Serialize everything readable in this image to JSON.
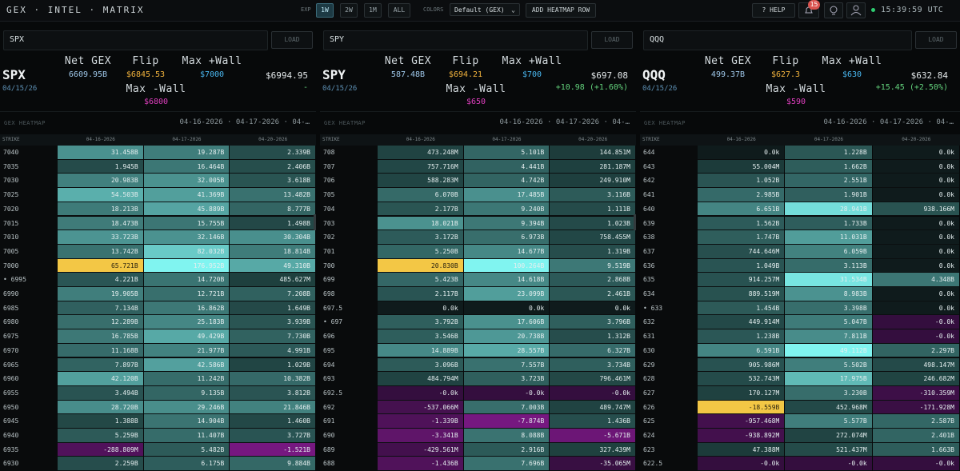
{
  "top_bar": {
    "title": "GEX · INTEL · MATRIX",
    "exp_label": "EXP",
    "exp_options": [
      "1W",
      "2W",
      "1M",
      "ALL"
    ],
    "exp_active": "1W",
    "colors_label": "COLORS",
    "colors_select": "Default (GEX)",
    "add_button": "ADD HEATMAP ROW",
    "help": "? HELP",
    "badge": "15",
    "clock": "15:39:59 UTC"
  },
  "panels": [
    {
      "input": "SPX",
      "load": "LOAD",
      "ticker": "SPX",
      "date": "04/15/26",
      "stats": [
        {
          "label": "Net GEX",
          "value": "6609.95B"
        },
        {
          "label": "Flip",
          "value": "$6845.53"
        },
        {
          "label": "Max +Wall",
          "value": "$7000"
        }
      ],
      "price": "$6994.95",
      "change": "-",
      "min_wall_label": "Max -Wall",
      "min_wall": "$6800",
      "heatmap_label": "GEX HEATMAP",
      "heatmap_dates": "04-16-2026 · 04-17-2026 · 04-…",
      "columns": [
        "STRIKE",
        "04-16-2026",
        "04-17-2026",
        "04-20-2026"
      ],
      "rows": [
        [
          "7040",
          "31.458B",
          "19.287B",
          "2.339B"
        ],
        [
          "7035",
          "1.945B",
          "16.464B",
          "2.406B"
        ],
        [
          "7030",
          "20.983B",
          "32.005B",
          "3.618B"
        ],
        [
          "7025",
          "54.503B",
          "41.369B",
          "13.482B"
        ],
        [
          "7020",
          "18.213B",
          "45.889B",
          "8.777B"
        ],
        [
          "7015",
          "18.473B",
          "15.755B",
          "1.498B"
        ],
        [
          "7010",
          "33.723B",
          "32.146B",
          "30.304B"
        ],
        [
          "7005",
          "13.742B",
          "82.032B",
          "18.814B"
        ],
        [
          "7000",
          "65.721B",
          "176.952B",
          "49.310B"
        ],
        [
          "• 6995",
          "4.221B",
          "14.720B",
          "485.627M"
        ],
        [
          "6990",
          "19.905B",
          "12.721B",
          "7.208B"
        ],
        [
          "6985",
          "7.134B",
          "16.862B",
          "1.649B"
        ],
        [
          "6980",
          "12.289B",
          "25.183B",
          "3.939B"
        ],
        [
          "6975",
          "16.785B",
          "49.429B",
          "7.730B"
        ],
        [
          "6970",
          "11.168B",
          "21.977B",
          "4.991B"
        ],
        [
          "6965",
          "7.897B",
          "42.586B",
          "1.029B"
        ],
        [
          "6960",
          "42.120B",
          "11.242B",
          "10.382B"
        ],
        [
          "6955",
          "3.494B",
          "9.135B",
          "3.812B"
        ],
        [
          "6950",
          "28.720B",
          "29.246B",
          "21.846B"
        ],
        [
          "6945",
          "1.388B",
          "14.904B",
          "1.460B"
        ],
        [
          "6940",
          "5.259B",
          "11.407B",
          "3.727B"
        ],
        [
          "6935",
          "-288.809M",
          "5.482B",
          "-1.521B"
        ],
        [
          "6930",
          "2.259B",
          "6.175B",
          "9.884B"
        ]
      ]
    },
    {
      "input": "SPY",
      "load": "LOAD",
      "ticker": "SPY",
      "date": "04/15/26",
      "stats": [
        {
          "label": "Net GEX",
          "value": "587.48B"
        },
        {
          "label": "Flip",
          "value": "$694.21"
        },
        {
          "label": "Max +Wall",
          "value": "$700"
        }
      ],
      "price": "$697.08",
      "change": "+10.98 (+1.60%)",
      "min_wall_label": "Max -Wall",
      "min_wall": "$650",
      "heatmap_label": "GEX HEATMAP",
      "heatmap_dates": "04-16-2026 · 04-17-2026 · 04-…",
      "columns": [
        "STRIKE",
        "04-16-2026",
        "04-17-2026",
        "04-20-2026"
      ],
      "rows": [
        [
          "708",
          "473.248M",
          "5.101B",
          "144.851M"
        ],
        [
          "707",
          "757.716M",
          "4.441B",
          "281.187M"
        ],
        [
          "706",
          "588.283M",
          "4.742B",
          "249.910M"
        ],
        [
          "705",
          "6.070B",
          "17.485B",
          "3.116B"
        ],
        [
          "704",
          "2.177B",
          "9.240B",
          "1.111B"
        ],
        [
          "703",
          "18.021B",
          "9.394B",
          "1.023B"
        ],
        [
          "702",
          "3.172B",
          "6.973B",
          "758.455M"
        ],
        [
          "701",
          "5.250B",
          "14.677B",
          "1.319B"
        ],
        [
          "700",
          "20.830B",
          "100.264B",
          "9.519B"
        ],
        [
          "699",
          "5.423B",
          "14.618B",
          "2.868B"
        ],
        [
          "698",
          "2.117B",
          "23.099B",
          "2.461B"
        ],
        [
          "697.5",
          "0.0k",
          "0.0k",
          "0.0k"
        ],
        [
          "• 697",
          "3.792B",
          "17.606B",
          "3.796B"
        ],
        [
          "696",
          "3.546B",
          "20.738B",
          "1.312B"
        ],
        [
          "695",
          "14.889B",
          "28.557B",
          "6.327B"
        ],
        [
          "694",
          "3.096B",
          "7.557B",
          "3.734B"
        ],
        [
          "693",
          "484.794M",
          "3.723B",
          "796.461M"
        ],
        [
          "692.5",
          "-0.0k",
          "-0.0k",
          "-0.0k"
        ],
        [
          "692",
          "-537.066M",
          "7.003B",
          "489.747M"
        ],
        [
          "691",
          "-1.339B",
          "-7.874B",
          "1.436B"
        ],
        [
          "690",
          "-3.341B",
          "8.088B",
          "-5.671B"
        ],
        [
          "689",
          "-429.561M",
          "2.916B",
          "327.439M"
        ],
        [
          "688",
          "-1.436B",
          "7.696B",
          "-35.065M"
        ]
      ]
    },
    {
      "input": "QQQ",
      "load": "LOAD",
      "ticker": "QQQ",
      "date": "04/15/26",
      "stats": [
        {
          "label": "Net GEX",
          "value": "499.37B"
        },
        {
          "label": "Flip",
          "value": "$627.3"
        },
        {
          "label": "Max +Wall",
          "value": "$630"
        }
      ],
      "price": "$632.84",
      "change": "+15.45 (+2.50%)",
      "min_wall_label": "Max -Wall",
      "min_wall": "$590",
      "heatmap_label": "GEX HEATMAP",
      "heatmap_dates": "04-16-2026 · 04-17-2026 · 04-…",
      "columns": [
        "STRIKE",
        "04-16-2026",
        "04-17-2026",
        "04-20-2026"
      ],
      "rows": [
        [
          "644",
          "0.0k",
          "1.228B",
          "0.0k"
        ],
        [
          "643",
          "55.004M",
          "1.662B",
          "0.0k"
        ],
        [
          "642",
          "1.052B",
          "2.551B",
          "0.0k"
        ],
        [
          "641",
          "2.985B",
          "1.901B",
          "0.0k"
        ],
        [
          "640",
          "6.651B",
          "28.941B",
          "938.166M"
        ],
        [
          "639",
          "1.562B",
          "1.733B",
          "0.0k"
        ],
        [
          "638",
          "1.747B",
          "11.031B",
          "0.0k"
        ],
        [
          "637",
          "744.646M",
          "6.059B",
          "0.0k"
        ],
        [
          "636",
          "1.049B",
          "3.113B",
          "0.0k"
        ],
        [
          "635",
          "914.257M",
          "31.534B",
          "4.348B"
        ],
        [
          "634",
          "889.519M",
          "8.983B",
          "0.0k"
        ],
        [
          "• 633",
          "1.454B",
          "3.398B",
          "0.0k"
        ],
        [
          "632",
          "449.914M",
          "5.047B",
          "-0.0k"
        ],
        [
          "631",
          "1.238B",
          "7.811B",
          "-0.0k"
        ],
        [
          "630",
          "6.591B",
          "49.112B",
          "2.297B"
        ],
        [
          "629",
          "905.986M",
          "5.502B",
          "498.147M"
        ],
        [
          "628",
          "532.743M",
          "17.975B",
          "246.682M"
        ],
        [
          "627",
          "170.127M",
          "3.230B",
          "-310.359M"
        ],
        [
          "626",
          "-18.559B",
          "452.968M",
          "-171.928M"
        ],
        [
          "625",
          "-957.468M",
          "5.577B",
          "2.587B"
        ],
        [
          "624",
          "-938.892M",
          "272.074M",
          "2.401B"
        ],
        [
          "623",
          "47.388M",
          "521.437M",
          "1.663B"
        ],
        [
          "622.5",
          "-0.0k",
          "-0.0k",
          "-0.0k"
        ]
      ]
    }
  ]
}
